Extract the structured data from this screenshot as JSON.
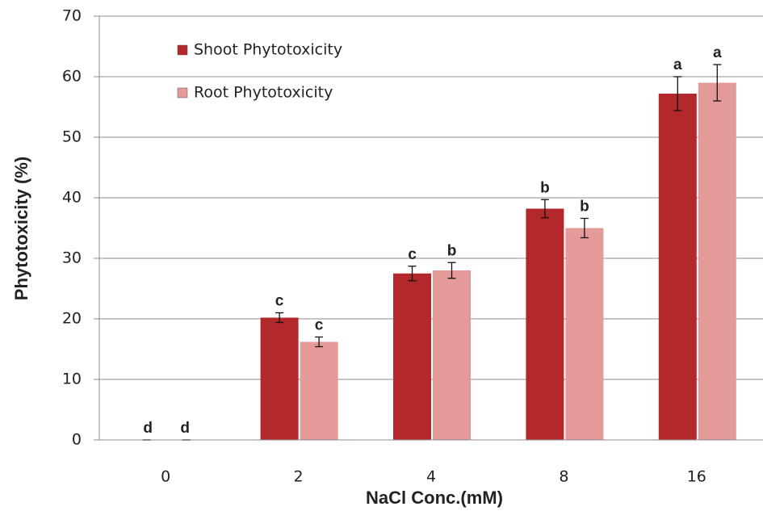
{
  "chart_data": {
    "type": "bar",
    "categories": [
      "0",
      "2",
      "4",
      "8",
      "16"
    ],
    "series": [
      {
        "name": "Shoot Phytotoxicity",
        "color": "#b3282b",
        "values": [
          0,
          20.2,
          27.5,
          38.2,
          57.2
        ],
        "errors": [
          0,
          0.8,
          1.2,
          1.5,
          2.8
        ],
        "labels": [
          "d",
          "c",
          "c",
          "b",
          "a"
        ]
      },
      {
        "name": "Root Phytotoxicity",
        "color": "#e39a98",
        "values": [
          0,
          16.2,
          28,
          35,
          59
        ],
        "errors": [
          0,
          0.8,
          1.3,
          1.6,
          3
        ],
        "labels": [
          "d",
          "c",
          "b",
          "b",
          "a"
        ]
      }
    ],
    "ylim": [
      0,
      70
    ],
    "yticks": [
      0,
      10,
      20,
      30,
      40,
      50,
      60,
      70
    ],
    "grid": true,
    "xlabel": "NaCl Conc.(mM)",
    "ylabel": "Phytotoxicity (%)",
    "legend": "upper left"
  }
}
